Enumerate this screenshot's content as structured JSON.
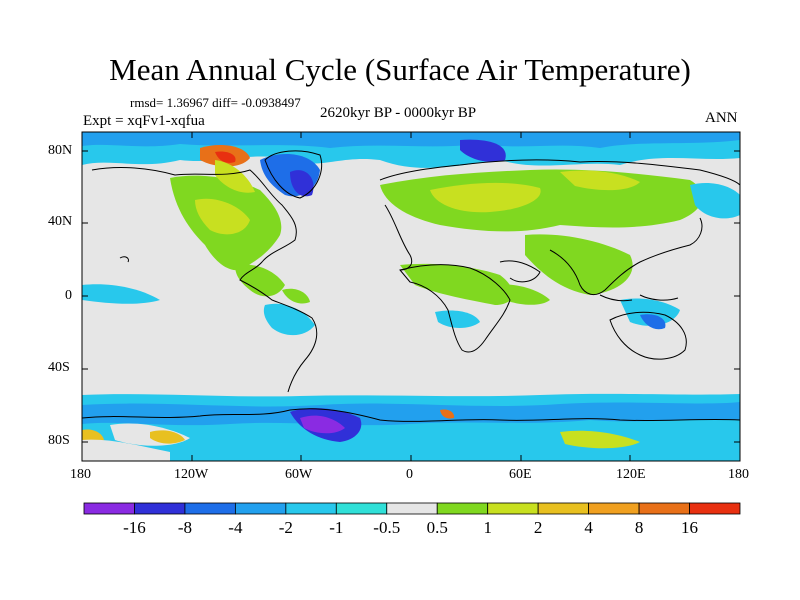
{
  "title": "Mean Annual Cycle (Surface Air Temperature)",
  "stats": "rmsd= 1.36967 diff= -0.0938497",
  "experiment": "Expt = xqFv1-xqfua",
  "period": "2620kyr BP - 0000kyr BP",
  "season": "ANN",
  "map": {
    "lat_ticks": [
      "80N",
      "40N",
      "0",
      "40S",
      "80S"
    ],
    "lon_ticks": [
      "180",
      "120W",
      "60W",
      "0",
      "60E",
      "120E",
      "180"
    ],
    "colors": {
      "land_neutral": "#e6e6e6",
      "coast": "#000000"
    }
  },
  "colorbar": {
    "labels": [
      "-16",
      "-8",
      "-4",
      "-2",
      "-1",
      "-0.5",
      "0.5",
      "1",
      "2",
      "4",
      "8",
      "16"
    ],
    "colors": [
      "#8a2be2",
      "#3030d8",
      "#1e6ee8",
      "#22a0ee",
      "#28c8ec",
      "#30e0d8",
      "#e6e6e6",
      "#80d820",
      "#c8e020",
      "#e8c020",
      "#f0a020",
      "#e87018",
      "#e83010"
    ]
  }
}
